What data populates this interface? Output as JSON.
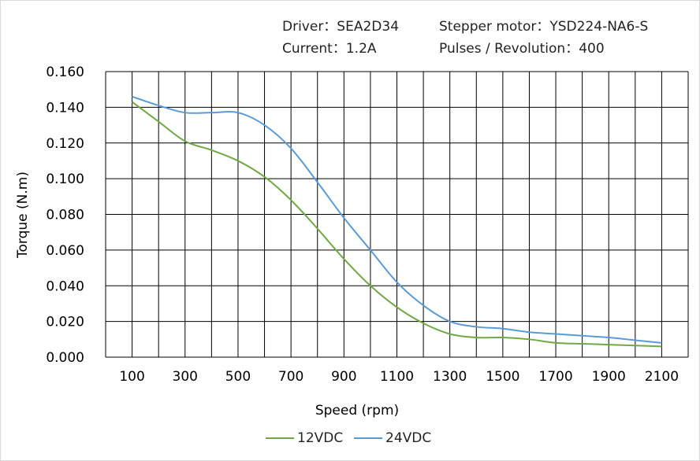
{
  "header": {
    "driver": "Driver：SEA2D34",
    "motor": "Stepper  motor：YSD224-NA6-S",
    "current": "Current：1.2A",
    "pulses": "Pulses / Revolution：400"
  },
  "chart_data": {
    "type": "line",
    "xlabel": "Speed  (rpm)",
    "ylabel": "Torque (N.m)",
    "xlim": [
      0,
      2200
    ],
    "ylim": [
      0,
      0.16
    ],
    "grid": true,
    "legend": "bottom",
    "x_ticks": [
      "100",
      "300",
      "500",
      "700",
      "900",
      "1100",
      "1300",
      "1500",
      "1700",
      "1900",
      "2100"
    ],
    "y_ticks": [
      "0.000",
      "0.020",
      "0.040",
      "0.060",
      "0.080",
      "0.100",
      "0.120",
      "0.140",
      "0.160"
    ],
    "x": [
      100,
      200,
      300,
      400,
      500,
      600,
      700,
      800,
      900,
      1000,
      1100,
      1200,
      1300,
      1400,
      1500,
      1600,
      1700,
      1800,
      1900,
      2000,
      2100
    ],
    "series": [
      {
        "name": "12VDC",
        "color": "#70a845",
        "values": [
          0.143,
          0.132,
          0.121,
          0.116,
          0.11,
          0.101,
          0.088,
          0.072,
          0.055,
          0.04,
          0.028,
          0.019,
          0.013,
          0.011,
          0.011,
          0.01,
          0.008,
          0.0075,
          0.007,
          0.0065,
          0.006
        ]
      },
      {
        "name": "24VDC",
        "color": "#5b9bd5",
        "values": [
          0.146,
          0.141,
          0.137,
          0.137,
          0.137,
          0.13,
          0.117,
          0.098,
          0.078,
          0.06,
          0.042,
          0.029,
          0.02,
          0.017,
          0.016,
          0.014,
          0.013,
          0.012,
          0.011,
          0.0095,
          0.008
        ]
      }
    ]
  }
}
